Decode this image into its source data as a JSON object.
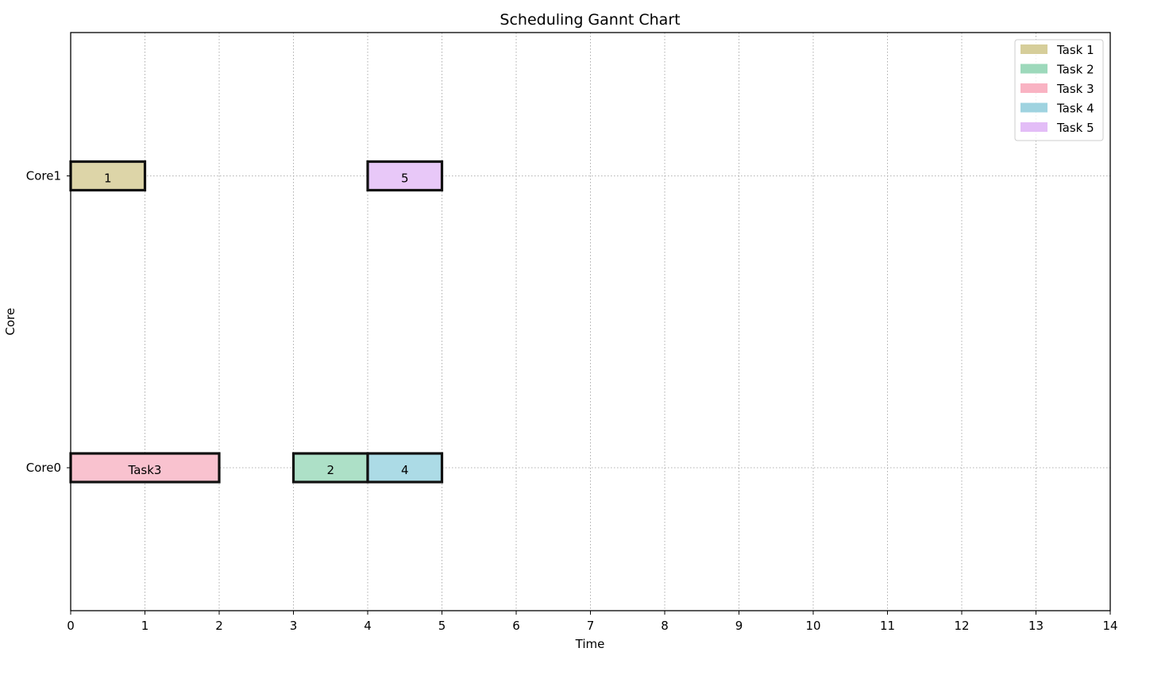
{
  "chart_data": {
    "type": "gantt",
    "title": "Scheduling Gannt Chart",
    "xlabel": "Time",
    "ylabel": "Core",
    "xlim": [
      0,
      14
    ],
    "xticks": [
      "0",
      "1",
      "2",
      "3",
      "4",
      "5",
      "6",
      "7",
      "8",
      "9",
      "10",
      "11",
      "12",
      "13",
      "14"
    ],
    "categories": [
      "Core0",
      "Core1"
    ],
    "grid": true,
    "legend_position": "top-right",
    "legend": [
      {
        "name": "Task 1",
        "color": "#d6ce9a"
      },
      {
        "name": "Task 2",
        "color": "#9dd9bb"
      },
      {
        "name": "Task 3",
        "color": "#f9b3c3"
      },
      {
        "name": "Task 4",
        "color": "#9fd3e0"
      },
      {
        "name": "Task 5",
        "color": "#e3bdf7"
      }
    ],
    "tasks": [
      {
        "core": "Core1",
        "start": 0,
        "end": 1,
        "label": "1",
        "color": "#ddd5a8"
      },
      {
        "core": "Core1",
        "start": 4,
        "end": 5,
        "label": "5",
        "color": "#e8c8f8"
      },
      {
        "core": "Core0",
        "start": 0,
        "end": 2,
        "label": "Task3",
        "color": "#f9c2cf"
      },
      {
        "core": "Core0",
        "start": 3,
        "end": 4,
        "label": "2",
        "color": "#ade0c7"
      },
      {
        "core": "Core0",
        "start": 4,
        "end": 5,
        "label": "4",
        "color": "#acdbe6"
      }
    ]
  }
}
